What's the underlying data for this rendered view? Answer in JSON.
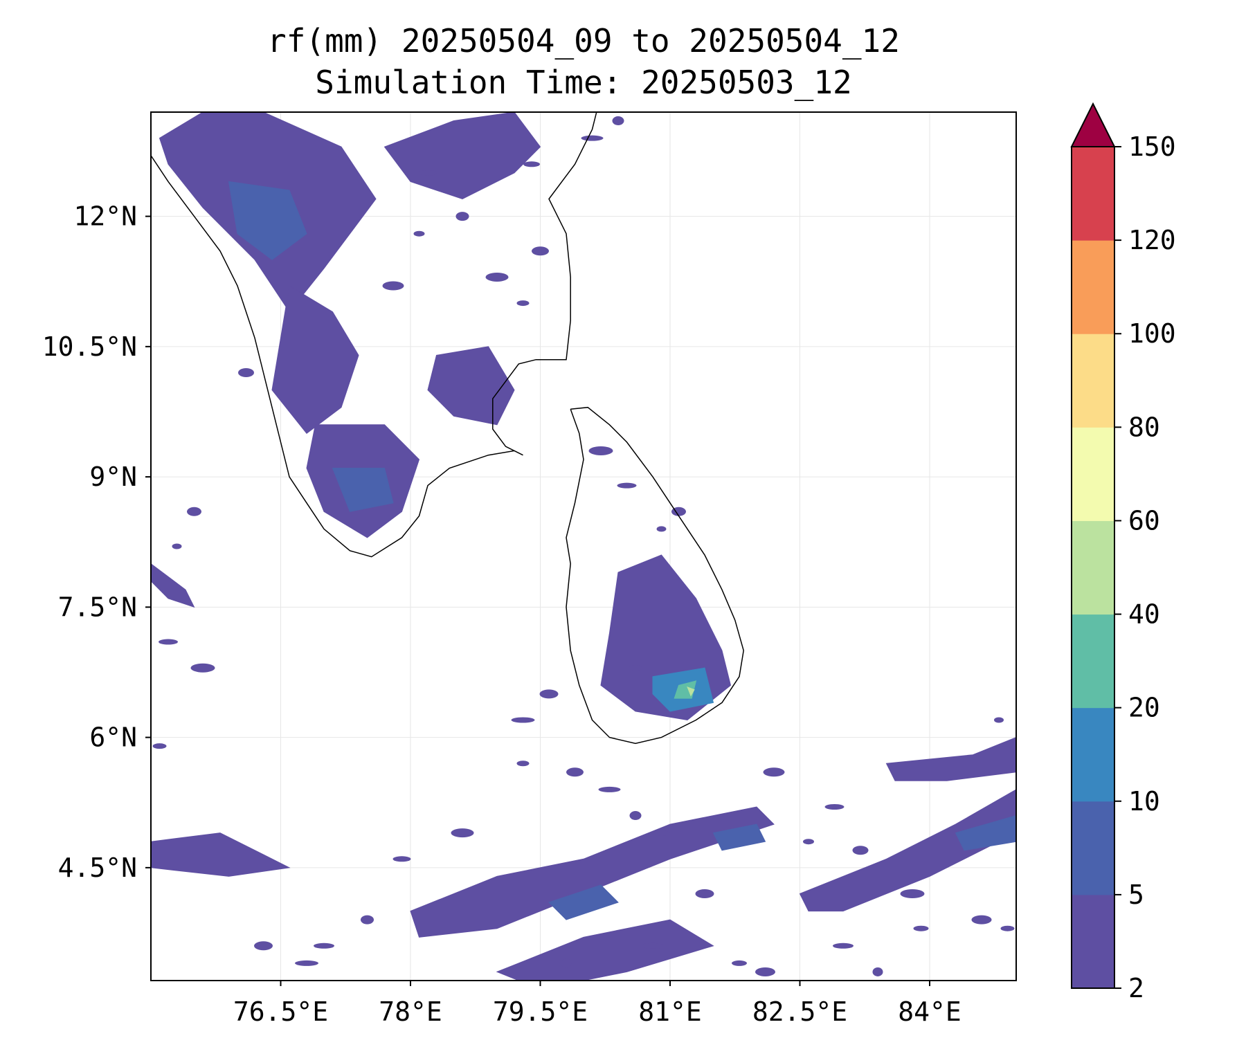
{
  "chart_data": {
    "type": "heatmap",
    "title": "rf(mm) 20250504_09 to 20250504_12",
    "subtitle": "Simulation Time: 20250503_12",
    "xlabel": "",
    "ylabel": "",
    "xlim": [
      75.0,
      85.0
    ],
    "ylim": [
      3.2,
      13.2
    ],
    "x_ticks": [
      76.5,
      78.0,
      79.5,
      81.0,
      82.5,
      84.0
    ],
    "x_tick_labels": [
      "76.5°E",
      "78°E",
      "79.5°E",
      "81°E",
      "82.5°E",
      "84°E"
    ],
    "y_ticks": [
      12.0,
      10.5,
      9.0,
      7.5,
      6.0,
      4.5
    ],
    "y_tick_labels": [
      "12°N",
      "10.5°N",
      "9°N",
      "7.5°N",
      "6°N",
      "4.5°N"
    ],
    "grid": true,
    "colorbar": {
      "levels": [
        2,
        5,
        10,
        20,
        40,
        60,
        80,
        100,
        120,
        150
      ],
      "labels": [
        "2",
        "5",
        "10",
        "20",
        "40",
        "60",
        "80",
        "100",
        "120",
        "150"
      ],
      "colors": [
        "#5e4fa2",
        "#4a62ad",
        "#3987c0",
        "#60bea6",
        "#bbe29f",
        "#f3fbaf",
        "#fcdc88",
        "#f99d59",
        "#d7414e"
      ],
      "extend_color": "#9e0142",
      "extend": "max"
    },
    "series": [
      {
        "region": "western-ghats-north",
        "polygon": [
          [
            75.1,
            12.9
          ],
          [
            75.6,
            13.2
          ],
          [
            76.3,
            13.2
          ],
          [
            77.2,
            12.8
          ],
          [
            77.6,
            12.2
          ],
          [
            77.0,
            11.4
          ],
          [
            76.6,
            10.9
          ],
          [
            76.2,
            11.5
          ],
          [
            75.6,
            12.1
          ],
          [
            75.2,
            12.6
          ]
        ],
        "level": 2
      },
      {
        "region": "western-ghats-mid",
        "polygon": [
          [
            76.6,
            11.2
          ],
          [
            77.1,
            10.9
          ],
          [
            77.4,
            10.4
          ],
          [
            77.2,
            9.8
          ],
          [
            76.8,
            9.5
          ],
          [
            76.4,
            10.0
          ],
          [
            76.5,
            10.6
          ]
        ],
        "level": 2
      },
      {
        "region": "western-ghats-south",
        "polygon": [
          [
            76.9,
            9.6
          ],
          [
            77.7,
            9.6
          ],
          [
            78.1,
            9.2
          ],
          [
            77.9,
            8.6
          ],
          [
            77.5,
            8.3
          ],
          [
            77.0,
            8.6
          ],
          [
            76.8,
            9.1
          ]
        ],
        "level": 2
      },
      {
        "region": "tamil-nadu-interior",
        "polygon": [
          [
            78.3,
            10.4
          ],
          [
            78.9,
            10.5
          ],
          [
            79.2,
            10.0
          ],
          [
            79.0,
            9.6
          ],
          [
            78.5,
            9.7
          ],
          [
            78.2,
            10.0
          ]
        ],
        "level": 2
      },
      {
        "region": "north-east-ghats",
        "polygon": [
          [
            77.7,
            12.8
          ],
          [
            78.5,
            13.1
          ],
          [
            79.2,
            13.2
          ],
          [
            79.5,
            12.8
          ],
          [
            79.2,
            12.5
          ],
          [
            78.6,
            12.2
          ],
          [
            78.0,
            12.4
          ]
        ],
        "level": 2
      },
      {
        "region": "kerala-core",
        "polygon": [
          [
            75.9,
            12.4
          ],
          [
            76.6,
            12.3
          ],
          [
            76.8,
            11.8
          ],
          [
            76.4,
            11.5
          ],
          [
            76.0,
            11.8
          ]
        ],
        "level": 5
      },
      {
        "region": "tn-south-core",
        "polygon": [
          [
            77.1,
            9.1
          ],
          [
            77.7,
            9.1
          ],
          [
            77.8,
            8.7
          ],
          [
            77.3,
            8.6
          ]
        ],
        "level": 5
      },
      {
        "region": "sri-lanka-interior",
        "polygon": [
          [
            80.4,
            7.9
          ],
          [
            80.9,
            8.1
          ],
          [
            81.3,
            7.6
          ],
          [
            81.6,
            7.0
          ],
          [
            81.7,
            6.6
          ],
          [
            81.2,
            6.2
          ],
          [
            80.6,
            6.3
          ],
          [
            80.2,
            6.6
          ],
          [
            80.3,
            7.2
          ]
        ],
        "level": 2
      },
      {
        "region": "sri-lanka-core",
        "polygon": [
          [
            80.8,
            6.7
          ],
          [
            81.4,
            6.8
          ],
          [
            81.5,
            6.4
          ],
          [
            81.0,
            6.3
          ],
          [
            80.8,
            6.5
          ]
        ],
        "level": 10
      },
      {
        "region": "sri-lanka-peak",
        "polygon": [
          [
            81.1,
            6.6
          ],
          [
            81.3,
            6.65
          ],
          [
            81.25,
            6.45
          ],
          [
            81.05,
            6.45
          ]
        ],
        "level": 20
      },
      {
        "region": "sri-lanka-max",
        "polygon": [
          [
            81.2,
            6.58
          ],
          [
            81.28,
            6.55
          ],
          [
            81.24,
            6.48
          ]
        ],
        "level": 40
      },
      {
        "region": "equatorial-band-1",
        "polygon": [
          [
            78.0,
            4.0
          ],
          [
            79.0,
            4.4
          ],
          [
            80.0,
            4.6
          ],
          [
            81.0,
            5.0
          ],
          [
            82.0,
            5.2
          ],
          [
            82.2,
            5.0
          ],
          [
            81.0,
            4.6
          ],
          [
            80.0,
            4.2
          ],
          [
            79.0,
            3.8
          ],
          [
            78.1,
            3.7
          ]
        ],
        "level": 2
      },
      {
        "region": "equatorial-band-2",
        "polygon": [
          [
            82.5,
            4.2
          ],
          [
            83.5,
            4.6
          ],
          [
            84.3,
            5.0
          ],
          [
            85.0,
            5.4
          ],
          [
            85.0,
            4.9
          ],
          [
            84.0,
            4.4
          ],
          [
            83.0,
            4.0
          ],
          [
            82.6,
            4.0
          ]
        ],
        "level": 2
      },
      {
        "region": "equatorial-band-3",
        "polygon": [
          [
            79.0,
            3.3
          ],
          [
            80.0,
            3.7
          ],
          [
            81.0,
            3.9
          ],
          [
            81.5,
            3.6
          ],
          [
            80.5,
            3.3
          ],
          [
            79.5,
            3.1
          ]
        ],
        "level": 2
      },
      {
        "region": "equatorial-band-4",
        "polygon": [
          [
            83.5,
            5.7
          ],
          [
            84.5,
            5.8
          ],
          [
            85.0,
            6.0
          ],
          [
            85.0,
            5.6
          ],
          [
            84.2,
            5.5
          ],
          [
            83.6,
            5.5
          ]
        ],
        "level": 2
      },
      {
        "region": "west-edge-band",
        "polygon": [
          [
            75.0,
            4.8
          ],
          [
            75.8,
            4.9
          ],
          [
            76.6,
            4.5
          ],
          [
            75.9,
            4.4
          ],
          [
            75.0,
            4.5
          ]
        ],
        "level": 2
      },
      {
        "region": "west-edge-strip",
        "polygon": [
          [
            75.0,
            8.0
          ],
          [
            75.4,
            7.7
          ],
          [
            75.5,
            7.5
          ],
          [
            75.2,
            7.6
          ],
          [
            75.0,
            7.8
          ]
        ],
        "level": 2
      },
      {
        "region": "equatorial-core-1",
        "polygon": [
          [
            79.6,
            4.1
          ],
          [
            80.2,
            4.3
          ],
          [
            80.4,
            4.1
          ],
          [
            79.8,
            3.9
          ]
        ],
        "level": 5
      },
      {
        "region": "equatorial-core-2",
        "polygon": [
          [
            84.3,
            4.9
          ],
          [
            85.0,
            5.1
          ],
          [
            85.0,
            4.8
          ],
          [
            84.4,
            4.7
          ]
        ],
        "level": 5
      },
      {
        "region": "equatorial-core-3",
        "polygon": [
          [
            81.5,
            4.9
          ],
          [
            82.0,
            5.0
          ],
          [
            82.1,
            4.8
          ],
          [
            81.6,
            4.7
          ]
        ],
        "level": 5
      }
    ],
    "scattered_cells": [
      [
        75.3,
        8.2
      ],
      [
        75.5,
        8.6
      ],
      [
        75.2,
        7.1
      ],
      [
        75.6,
        6.8
      ],
      [
        75.1,
        5.9
      ],
      [
        76.3,
        3.6
      ],
      [
        76.8,
        3.4
      ],
      [
        77.5,
        3.9
      ],
      [
        77.9,
        4.6
      ],
      [
        78.6,
        4.9
      ],
      [
        79.3,
        5.7
      ],
      [
        79.9,
        5.6
      ],
      [
        80.3,
        5.4
      ],
      [
        80.6,
        5.1
      ],
      [
        80.9,
        4.9
      ],
      [
        82.2,
        5.6
      ],
      [
        82.6,
        4.8
      ],
      [
        83.2,
        4.7
      ],
      [
        83.0,
        3.6
      ],
      [
        83.4,
        3.3
      ],
      [
        83.9,
        3.8
      ],
      [
        84.6,
        3.9
      ],
      [
        80.9,
        8.4
      ],
      [
        81.1,
        8.6
      ],
      [
        80.5,
        8.9
      ],
      [
        80.2,
        9.3
      ],
      [
        80.6,
        6.8
      ],
      [
        79.6,
        6.5
      ],
      [
        79.3,
        6.2
      ],
      [
        78.6,
        12.0
      ],
      [
        78.2,
        12.5
      ],
      [
        79.0,
        11.3
      ],
      [
        79.3,
        11.0
      ],
      [
        79.5,
        11.6
      ],
      [
        80.1,
        12.9
      ],
      [
        80.4,
        13.1
      ],
      [
        79.4,
        12.6
      ],
      [
        77.8,
        11.2
      ],
      [
        78.1,
        11.8
      ],
      [
        76.1,
        10.2
      ],
      [
        77.0,
        3.6
      ],
      [
        79.8,
        3.4
      ],
      [
        81.8,
        3.4
      ],
      [
        82.1,
        3.3
      ],
      [
        84.8,
        6.2
      ],
      [
        85.0,
        5.9
      ],
      [
        82.9,
        5.2
      ],
      [
        83.8,
        4.2
      ],
      [
        84.9,
        3.8
      ],
      [
        81.4,
        4.2
      ],
      [
        80.8,
        3.6
      ]
    ],
    "coastlines": {
      "india": [
        [
          75.0,
          12.7
        ],
        [
          75.2,
          12.4
        ],
        [
          75.5,
          12.0
        ],
        [
          75.8,
          11.6
        ],
        [
          76.0,
          11.2
        ],
        [
          76.1,
          10.9
        ],
        [
          76.2,
          10.6
        ],
        [
          76.3,
          10.2
        ],
        [
          76.4,
          9.8
        ],
        [
          76.5,
          9.4
        ],
        [
          76.6,
          9.0
        ],
        [
          76.8,
          8.7
        ],
        [
          77.0,
          8.4
        ],
        [
          77.3,
          8.15
        ],
        [
          77.55,
          8.08
        ],
        [
          77.9,
          8.3
        ],
        [
          78.1,
          8.55
        ],
        [
          78.2,
          8.9
        ],
        [
          78.45,
          9.1
        ],
        [
          78.9,
          9.25
        ],
        [
          79.2,
          9.3
        ],
        [
          79.3,
          9.25
        ],
        [
          79.1,
          9.35
        ],
        [
          78.95,
          9.55
        ],
        [
          78.95,
          9.9
        ],
        [
          79.25,
          10.3
        ],
        [
          79.45,
          10.35
        ],
        [
          79.8,
          10.35
        ],
        [
          79.85,
          10.8
        ],
        [
          79.85,
          11.3
        ],
        [
          79.8,
          11.8
        ],
        [
          79.6,
          12.2
        ],
        [
          79.9,
          12.6
        ],
        [
          80.1,
          13.0
        ],
        [
          80.15,
          13.2
        ]
      ],
      "sri_lanka": [
        [
          79.85,
          9.78
        ],
        [
          80.05,
          9.8
        ],
        [
          80.3,
          9.6
        ],
        [
          80.5,
          9.4
        ],
        [
          80.8,
          9.0
        ],
        [
          81.0,
          8.7
        ],
        [
          81.2,
          8.4
        ],
        [
          81.4,
          8.1
        ],
        [
          81.6,
          7.7
        ],
        [
          81.75,
          7.35
        ],
        [
          81.85,
          7.0
        ],
        [
          81.8,
          6.7
        ],
        [
          81.6,
          6.4
        ],
        [
          81.3,
          6.2
        ],
        [
          80.9,
          6.0
        ],
        [
          80.6,
          5.93
        ],
        [
          80.3,
          6.0
        ],
        [
          80.1,
          6.2
        ],
        [
          79.95,
          6.6
        ],
        [
          79.85,
          7.0
        ],
        [
          79.8,
          7.5
        ],
        [
          79.85,
          8.0
        ],
        [
          79.8,
          8.3
        ],
        [
          79.9,
          8.7
        ],
        [
          80.0,
          9.2
        ],
        [
          79.95,
          9.5
        ],
        [
          79.85,
          9.78
        ]
      ]
    }
  }
}
